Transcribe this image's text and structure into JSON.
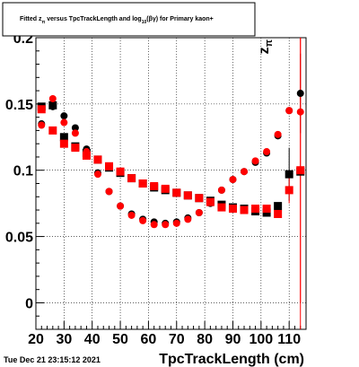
{
  "header": {
    "title_pre": "Fitted  z",
    "title_sub": "π",
    "title_mid": "  versus  TpcTrackLength and log",
    "title_sub2": "10",
    "title_post": "(βγ) for Primary kaon+",
    "timestamp": "Tue Dec 21 23:15:12 2021"
  },
  "chart_data": {
    "type": "scatter",
    "title": "Fitted z_π versus TpcTrackLength and log10(βγ) for Primary kaon+",
    "xlabel": "TpcTrackLength (cm)",
    "ylabel": "z_π",
    "xlim": [
      20,
      116
    ],
    "ylim": [
      -0.02,
      0.2
    ],
    "grid": true,
    "x_ticks": [
      20,
      30,
      40,
      50,
      60,
      70,
      80,
      90,
      100,
      110
    ],
    "x_tick_labels": [
      "20",
      "30",
      "40",
      "50",
      "60",
      "70",
      "80",
      "90",
      "100",
      "110"
    ],
    "y_ticks": [
      0,
      0.05,
      0.1,
      0.15,
      0.2
    ],
    "y_tick_labels": [
      "0",
      "0.05",
      "0.1",
      "0.15",
      "0.2"
    ],
    "series": [
      {
        "color": "#000000",
        "marker": "circle",
        "points": [
          [
            22,
            0.135
          ],
          [
            26,
            0.148
          ],
          [
            30,
            0.141
          ],
          [
            34,
            0.132
          ],
          [
            38,
            0.116
          ],
          [
            42,
            0.098
          ],
          [
            46,
            0.084
          ],
          [
            50,
            0.073
          ],
          [
            54,
            0.067
          ],
          [
            58,
            0.063
          ],
          [
            62,
            0.061
          ],
          [
            66,
            0.06
          ],
          [
            70,
            0.061
          ],
          [
            74,
            0.064
          ],
          [
            78,
            0.068
          ],
          [
            82,
            0.075
          ],
          [
            86,
            0.085
          ],
          [
            90,
            0.093
          ],
          [
            94,
            0.099
          ],
          [
            98,
            0.106
          ],
          [
            102,
            0.113
          ],
          [
            106,
            0.126
          ],
          [
            110,
            0.145
          ],
          [
            114,
            0.158
          ]
        ],
        "errors": [
          0,
          0,
          0,
          0,
          0,
          0,
          0,
          0,
          0,
          0,
          0,
          0,
          0,
          0,
          0,
          0,
          0,
          0,
          0,
          0,
          0,
          0,
          0,
          0.03
        ]
      },
      {
        "color": "#000000",
        "marker": "square",
        "points": [
          [
            22,
            0.148
          ],
          [
            26,
            0.149
          ],
          [
            30,
            0.125
          ],
          [
            34,
            0.118
          ],
          [
            38,
            0.113
          ],
          [
            42,
            0.108
          ],
          [
            46,
            0.102
          ],
          [
            50,
            0.098
          ],
          [
            54,
            0.094
          ],
          [
            58,
            0.09
          ],
          [
            62,
            0.087
          ],
          [
            66,
            0.085
          ],
          [
            70,
            0.083
          ],
          [
            74,
            0.081
          ],
          [
            78,
            0.079
          ],
          [
            82,
            0.077
          ],
          [
            86,
            0.074
          ],
          [
            90,
            0.072
          ],
          [
            94,
            0.071
          ],
          [
            98,
            0.069
          ],
          [
            102,
            0.068
          ],
          [
            106,
            0.073
          ],
          [
            110,
            0.097
          ],
          [
            114,
            0.099
          ]
        ],
        "errors": [
          0,
          0,
          0,
          0,
          0,
          0,
          0,
          0,
          0,
          0,
          0,
          0,
          0,
          0,
          0,
          0,
          0,
          0,
          0,
          0,
          0,
          0,
          0.02,
          0
        ]
      },
      {
        "color": "#ff0000",
        "marker": "circle",
        "points": [
          [
            22,
            0.134
          ],
          [
            26,
            0.154
          ],
          [
            30,
            0.136
          ],
          [
            34,
            0.128
          ],
          [
            38,
            0.114
          ],
          [
            42,
            0.097
          ],
          [
            46,
            0.084
          ],
          [
            50,
            0.073
          ],
          [
            54,
            0.066
          ],
          [
            58,
            0.062
          ],
          [
            62,
            0.059
          ],
          [
            66,
            0.059
          ],
          [
            70,
            0.06
          ],
          [
            74,
            0.063
          ],
          [
            78,
            0.068
          ],
          [
            82,
            0.076
          ],
          [
            86,
            0.085
          ],
          [
            90,
            0.093
          ],
          [
            94,
            0.099
          ],
          [
            98,
            0.107
          ],
          [
            102,
            0.114
          ],
          [
            106,
            0.127
          ],
          [
            110,
            0.145
          ],
          [
            114,
            0.144
          ]
        ],
        "errors": [
          0,
          0,
          0,
          0,
          0,
          0,
          0,
          0,
          0,
          0,
          0,
          0,
          0,
          0,
          0,
          0,
          0,
          0,
          0,
          0,
          0,
          0,
          0,
          0.18
        ]
      },
      {
        "color": "#ff0000",
        "marker": "square",
        "points": [
          [
            22,
            0.146
          ],
          [
            26,
            0.13
          ],
          [
            30,
            0.12
          ],
          [
            34,
            0.117
          ],
          [
            38,
            0.111
          ],
          [
            42,
            0.108
          ],
          [
            46,
            0.103
          ],
          [
            50,
            0.099
          ],
          [
            54,
            0.094
          ],
          [
            58,
            0.09
          ],
          [
            62,
            0.088
          ],
          [
            66,
            0.086
          ],
          [
            70,
            0.083
          ],
          [
            74,
            0.081
          ],
          [
            78,
            0.079
          ],
          [
            82,
            0.076
          ],
          [
            86,
            0.072
          ],
          [
            90,
            0.071
          ],
          [
            94,
            0.07
          ],
          [
            98,
            0.071
          ],
          [
            102,
            0.071
          ],
          [
            106,
            0.067
          ],
          [
            110,
            0.085
          ],
          [
            114,
            0.1
          ]
        ],
        "errors": [
          0,
          0,
          0,
          0,
          0,
          0,
          0,
          0,
          0,
          0,
          0,
          0,
          0,
          0,
          0,
          0,
          0,
          0,
          0,
          0,
          0,
          0,
          0.01,
          0.1
        ]
      }
    ]
  }
}
